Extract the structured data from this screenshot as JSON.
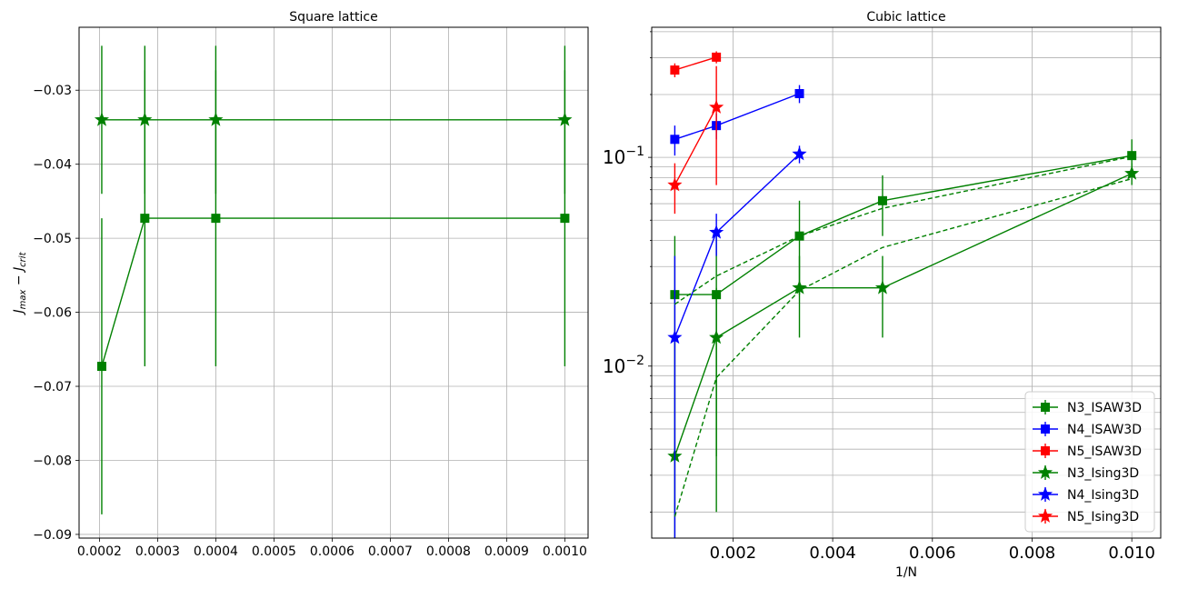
{
  "chart_data": [
    {
      "type": "scatter",
      "title": "Square lattice",
      "xlabel": "",
      "ylabel": "J_max − J_crit",
      "ylabel_parts": {
        "main": "J",
        "sub1": "max",
        "minus": " − J",
        "sub2": "crit"
      },
      "xlim": [
        0.000165,
        0.00104
      ],
      "ylim": [
        -0.0905,
        -0.0215
      ],
      "xticks": [
        0.0002,
        0.0003,
        0.0004,
        0.0005,
        0.0006,
        0.0007,
        0.0008,
        0.0009,
        0.001
      ],
      "xtick_labels": [
        "0.0002",
        "0.0003",
        "0.0004",
        "0.0005",
        "0.0006",
        "0.0007",
        "0.0008",
        "0.0009",
        "0.0010"
      ],
      "yticks": [
        -0.09,
        -0.08,
        -0.07,
        -0.06,
        -0.05,
        -0.04,
        -0.03
      ],
      "ytick_labels": [
        "−0.09",
        "−0.08",
        "−0.07",
        "−0.06",
        "−0.05",
        "−0.04",
        "−0.03"
      ],
      "grid": true,
      "series": [
        {
          "marker": "square",
          "color": "#008000",
          "linestyle": "solid",
          "x": [
            0.000204,
            0.000278,
            0.0004,
            0.001
          ],
          "y": [
            -0.0673,
            -0.0473,
            -0.0473,
            -0.0473
          ],
          "yerr": [
            0.02,
            0.02,
            0.02,
            0.02
          ]
        },
        {
          "marker": "star",
          "color": "#008000",
          "linestyle": "solid",
          "x": [
            0.000204,
            0.000278,
            0.0004,
            0.001
          ],
          "y": [
            -0.034,
            -0.034,
            -0.034,
            -0.034
          ],
          "yerr": [
            0.01,
            0.01,
            0.01,
            0.01
          ]
        }
      ]
    },
    {
      "type": "scatter",
      "title": "Cubic lattice",
      "xlabel": "1/N",
      "ylabel": "",
      "yscale": "log",
      "xlim": [
        0.00037,
        0.01058
      ],
      "ylim": [
        0.0015,
        0.42
      ],
      "xticks": [
        0.002,
        0.004,
        0.006,
        0.008,
        0.01
      ],
      "xtick_labels": [
        "0.002",
        "0.004",
        "0.006",
        "0.008",
        "0.010"
      ],
      "yticks": [
        0.01,
        0.1
      ],
      "ytick_labels": [
        {
          "base": "10",
          "exp": "−2"
        },
        {
          "base": "10",
          "exp": "−1"
        }
      ],
      "grid": true,
      "legend_position": "lower-right",
      "series": [
        {
          "name": "N3_ISAW3D",
          "marker": "square",
          "color": "#008000",
          "linestyle": "solid",
          "x": [
            0.000833,
            0.001667,
            0.003333,
            0.005,
            0.01
          ],
          "y": [
            0.022,
            0.022,
            0.042,
            0.062,
            0.102
          ],
          "yerr": [
            0.02,
            0.02,
            0.02,
            0.02,
            0.02
          ]
        },
        {
          "name": "N4_ISAW3D",
          "marker": "square",
          "color": "#0000ff",
          "linestyle": "solid",
          "x": [
            0.000833,
            0.001667,
            0.003333
          ],
          "y": [
            0.122,
            0.142,
            0.202
          ],
          "yerr": [
            0.02,
            0.02,
            0.02
          ]
        },
        {
          "name": "N5_ISAW3D",
          "marker": "square",
          "color": "#ff0000",
          "linestyle": "solid",
          "x": [
            0.000833,
            0.001667
          ],
          "y": [
            0.262,
            0.302
          ],
          "yerr": [
            0.02,
            0.02
          ]
        },
        {
          "name": "N3_Ising3D",
          "marker": "star",
          "color": "#008000",
          "linestyle": "solid",
          "x": [
            0.000833,
            0.001667,
            0.003333,
            0.005,
            0.01
          ],
          "y": [
            0.0037,
            0.0137,
            0.0237,
            0.0237,
            0.0837
          ],
          "yerr": [
            0.01,
            0.01,
            0.01,
            0.01,
            0.01
          ]
        },
        {
          "name": "N4_Ising3D",
          "marker": "star",
          "color": "#0000ff",
          "linestyle": "solid",
          "x": [
            0.000833,
            0.001667,
            0.003333
          ],
          "y": [
            0.0137,
            0.0437,
            0.1037
          ],
          "yerr": [
            0.02,
            0.01,
            0.01
          ]
        },
        {
          "name": "N5_Ising3D",
          "marker": "star",
          "color": "#ff0000",
          "linestyle": "solid",
          "x": [
            0.000833,
            0.001667
          ],
          "y": [
            0.0737,
            0.1737
          ],
          "yerr": [
            0.02,
            0.1
          ]
        },
        {
          "marker": "none",
          "color": "#008000",
          "linestyle": "dashed",
          "x": [
            0.000833,
            0.001667,
            0.003333,
            0.005,
            0.01
          ],
          "y": [
            0.0198,
            0.027,
            0.042,
            0.057,
            0.101
          ]
        },
        {
          "marker": "none",
          "color": "#008000",
          "linestyle": "dashed",
          "x": [
            0.000833,
            0.001667,
            0.003333,
            0.005,
            0.01
          ],
          "y": [
            0.0019,
            0.0088,
            0.023,
            0.037,
            0.079
          ]
        }
      ]
    }
  ]
}
